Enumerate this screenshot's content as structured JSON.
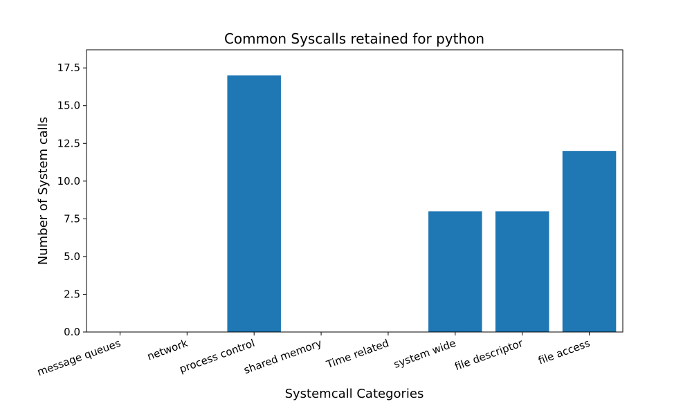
{
  "chart_data": {
    "type": "bar",
    "title": "Common Syscalls retained for python",
    "xlabel": "Systemcall Categories",
    "ylabel": "Number of System calls",
    "categories": [
      "message queues",
      "network",
      "process control",
      "shared memory",
      "Time related",
      "system wide",
      "file descriptor",
      "file access"
    ],
    "values": [
      0,
      0,
      17,
      0,
      0,
      8,
      8,
      12
    ],
    "ylim": [
      0,
      18.7
    ],
    "yticks": [
      "0.0",
      "2.5",
      "5.0",
      "7.5",
      "10.0",
      "12.5",
      "15.0",
      "17.5"
    ],
    "grid": false,
    "bar_color": "#1f77b4"
  }
}
